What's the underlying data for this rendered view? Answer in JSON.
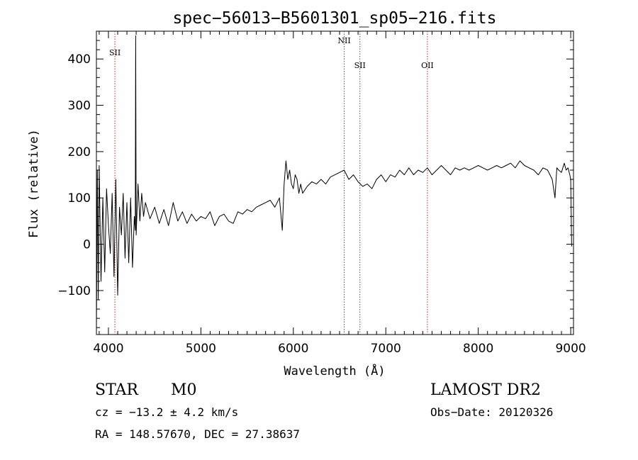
{
  "chart_data": {
    "type": "line",
    "title": "spec−56013−B5601301_sp05−216.fits",
    "xlabel": "Wavelength (Å)",
    "ylabel": "Flux (relative)",
    "xlim": [
      3870,
      9030
    ],
    "ylim": [
      -195,
      460
    ],
    "xticks": [
      4000,
      5000,
      6000,
      7000,
      8000,
      9000
    ],
    "yticks": [
      -100,
      0,
      100,
      200,
      300,
      400
    ],
    "ytick_labels": [
      "−100",
      "0",
      "100",
      "200",
      "300",
      "400"
    ],
    "grid": false,
    "lines": [
      {
        "label": "SII",
        "x": 4070
      },
      {
        "label": "NII",
        "x": 6550
      },
      {
        "label": "SII",
        "x": 6720
      },
      {
        "label": "OII",
        "x": 7450
      }
    ],
    "series": [
      {
        "x": [
          3870,
          3880,
          3890,
          3900,
          3920,
          3940,
          3960,
          3980,
          4000,
          4020,
          4040,
          4060,
          4080,
          4100,
          4120,
          4140,
          4160,
          4180,
          4200,
          4220,
          4240,
          4260,
          4280,
          4290,
          4295,
          4300,
          4320,
          4340,
          4360,
          4380,
          4400,
          4450,
          4500,
          4550,
          4600,
          4650,
          4700,
          4750,
          4800,
          4850,
          4900,
          4950,
          5000,
          5050,
          5100,
          5150,
          5200,
          5250,
          5300,
          5350,
          5400,
          5450,
          5500,
          5550,
          5600,
          5650,
          5700,
          5750,
          5800,
          5850,
          5880,
          5900,
          5920,
          5940,
          5960,
          5980,
          6000,
          6020,
          6040,
          6060,
          6080,
          6100,
          6150,
          6200,
          6250,
          6300,
          6350,
          6400,
          6450,
          6500,
          6550,
          6600,
          6650,
          6700,
          6750,
          6800,
          6850,
          6900,
          6950,
          7000,
          7050,
          7100,
          7150,
          7200,
          7250,
          7300,
          7350,
          7400,
          7450,
          7500,
          7550,
          7600,
          7650,
          7700,
          7750,
          7800,
          7850,
          7900,
          7950,
          8000,
          8050,
          8100,
          8150,
          8200,
          8250,
          8300,
          8350,
          8400,
          8450,
          8500,
          8550,
          8600,
          8650,
          8700,
          8750,
          8800,
          8830,
          8850,
          8870,
          8900,
          8930,
          8950,
          8970,
          8990,
          9000,
          9010
        ],
        "y": [
          -185,
          160,
          -120,
          170,
          -80,
          100,
          -60,
          120,
          40,
          -20,
          110,
          -70,
          140,
          -110,
          80,
          20,
          110,
          -30,
          90,
          -40,
          100,
          -50,
          60,
          30,
          450,
          20,
          130,
          50,
          110,
          60,
          90,
          55,
          80,
          45,
          75,
          40,
          90,
          50,
          70,
          45,
          65,
          50,
          60,
          55,
          70,
          40,
          60,
          65,
          50,
          45,
          70,
          65,
          75,
          70,
          80,
          85,
          90,
          95,
          80,
          100,
          30,
          130,
          180,
          140,
          160,
          130,
          120,
          150,
          140,
          110,
          130,
          110,
          125,
          135,
          130,
          140,
          130,
          145,
          150,
          155,
          160,
          140,
          150,
          135,
          125,
          130,
          120,
          140,
          150,
          135,
          150,
          145,
          160,
          150,
          165,
          150,
          160,
          155,
          165,
          150,
          160,
          170,
          160,
          150,
          165,
          160,
          165,
          160,
          165,
          170,
          165,
          160,
          165,
          170,
          165,
          170,
          175,
          165,
          180,
          170,
          165,
          160,
          150,
          165,
          160,
          140,
          100,
          165,
          160,
          155,
          175,
          160,
          165,
          150,
          140,
          -5
        ]
      }
    ]
  },
  "info": {
    "object_class": "STAR",
    "subclass": "M0",
    "cz": "cz = −13.2 ± 4.2 km/s",
    "coords": "RA = 148.57670, DEC =  27.38637",
    "survey": "LAMOST DR2",
    "obs_date": "Obs−Date: 20120326"
  }
}
